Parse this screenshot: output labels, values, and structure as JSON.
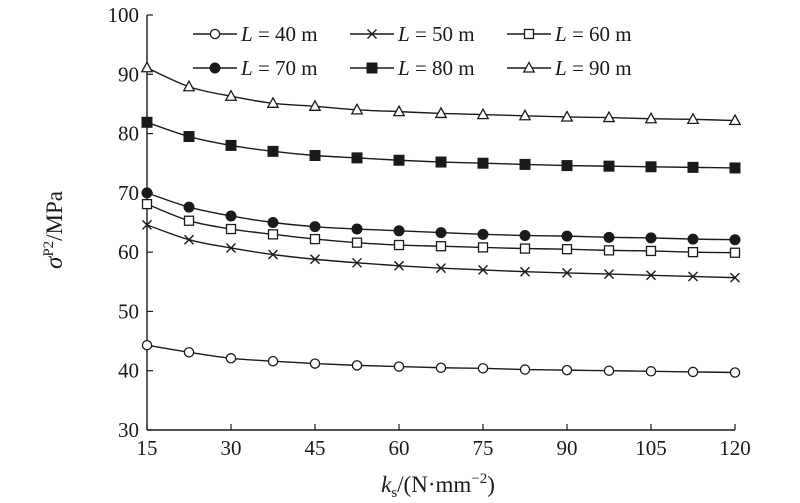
{
  "chart_data": {
    "type": "line",
    "xlabel_main": "k",
    "xlabel_sub": "s",
    "xlabel_rest": "/(N·mm",
    "xlabel_sup": "−2",
    "xlabel_close": ")",
    "ylabel_main": "σ",
    "ylabel_sup": "P2",
    "ylabel_rest": "/MPa",
    "xlim": [
      15,
      120
    ],
    "ylim": [
      30,
      100
    ],
    "xticks": [
      15,
      30,
      45,
      60,
      75,
      90,
      105,
      120
    ],
    "yticks": [
      30,
      40,
      50,
      60,
      70,
      80,
      90,
      100
    ],
    "x": [
      15,
      22.5,
      30,
      37.5,
      45,
      52.5,
      60,
      67.5,
      75,
      82.5,
      90,
      97.5,
      105,
      112.5,
      120
    ],
    "series": [
      {
        "name": "L = 40 m",
        "marker": "circle-open",
        "values": [
          44.3,
          43.1,
          42.1,
          41.6,
          41.2,
          40.9,
          40.7,
          40.5,
          40.4,
          40.2,
          40.1,
          40.0,
          39.9,
          39.8,
          39.7
        ]
      },
      {
        "name": "L = 50 m",
        "marker": "x",
        "values": [
          64.6,
          62.1,
          60.7,
          59.6,
          58.8,
          58.2,
          57.7,
          57.3,
          57.0,
          56.7,
          56.5,
          56.3,
          56.1,
          55.9,
          55.7
        ]
      },
      {
        "name": "L = 60 m",
        "marker": "square-open",
        "values": [
          68.1,
          65.3,
          63.9,
          63.0,
          62.2,
          61.6,
          61.2,
          61.0,
          60.8,
          60.6,
          60.5,
          60.3,
          60.2,
          60.0,
          59.9
        ]
      },
      {
        "name": "L = 70 m",
        "marker": "circle-filled",
        "values": [
          70.0,
          67.6,
          66.1,
          65.0,
          64.3,
          63.9,
          63.6,
          63.3,
          63.0,
          62.8,
          62.7,
          62.5,
          62.4,
          62.2,
          62.1
        ]
      },
      {
        "name": "L = 80 m",
        "marker": "square-filled",
        "values": [
          81.9,
          79.5,
          78.0,
          77.0,
          76.3,
          75.9,
          75.5,
          75.2,
          75.0,
          74.8,
          74.6,
          74.5,
          74.4,
          74.3,
          74.2
        ]
      },
      {
        "name": "L = 90 m",
        "marker": "triangle-open",
        "values": [
          91.1,
          87.9,
          86.3,
          85.1,
          84.6,
          84.0,
          83.7,
          83.4,
          83.2,
          83.0,
          82.8,
          82.7,
          82.5,
          82.4,
          82.2
        ]
      }
    ],
    "legend": "top-right",
    "grid": false
  }
}
